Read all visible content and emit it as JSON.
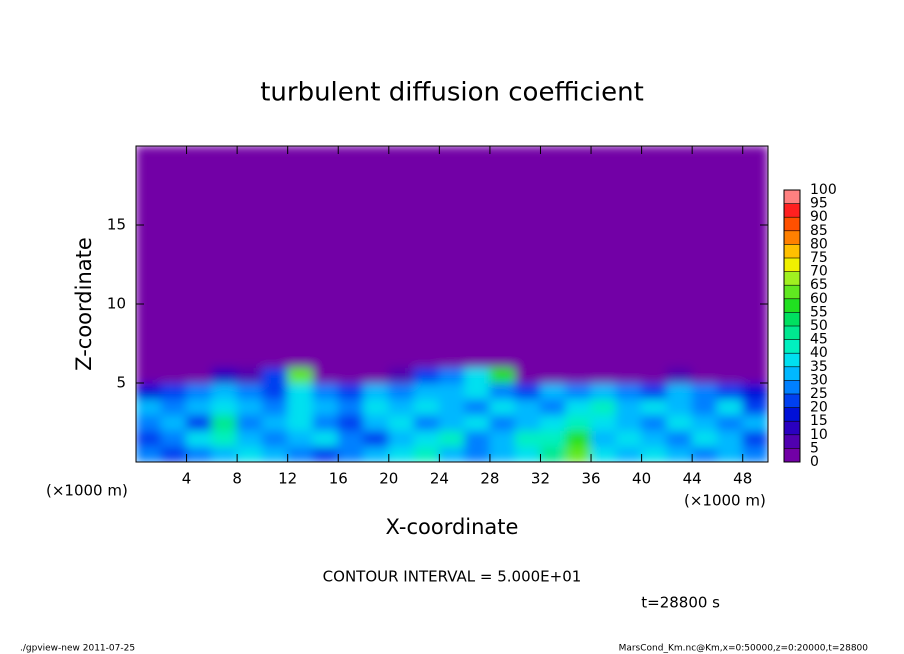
{
  "chart_data": {
    "type": "heatmap",
    "title": "turbulent diffusion coefficient",
    "xlabel": "X-coordinate",
    "ylabel": "Z-coordinate",
    "xunit": "(×1000 m)",
    "yunit": "(×1000 m)",
    "contour_note": "CONTOUR INTERVAL = 5.000E+01",
    "time_label": "t=28800 s",
    "footer_left": "./gpview-new  2011-07-25",
    "footer_right": "MarsCond_Km.nc@Km,x=0:50000,z=0:20000,t=28800",
    "xlim": [
      0,
      50
    ],
    "ylim": [
      0,
      20
    ],
    "xticks": [
      4,
      8,
      12,
      16,
      20,
      24,
      28,
      32,
      36,
      40,
      44,
      48
    ],
    "yticks": [
      5,
      10,
      15
    ],
    "xbins": [
      0,
      2,
      4,
      6,
      8,
      10,
      12,
      14,
      16,
      18,
      20,
      22,
      24,
      26,
      28,
      30,
      32,
      34,
      36,
      38,
      40,
      42,
      44,
      46,
      48,
      50
    ],
    "ybins": [
      0,
      1,
      2,
      3,
      4,
      5,
      6,
      20
    ],
    "values": [
      [
        25,
        20,
        25,
        30,
        35,
        30,
        25,
        20,
        25,
        30,
        35,
        40,
        30,
        25,
        30,
        35,
        45,
        60,
        35,
        30,
        35,
        30,
        25,
        30,
        25
      ],
      [
        20,
        25,
        35,
        40,
        30,
        25,
        30,
        35,
        25,
        20,
        30,
        35,
        40,
        25,
        30,
        40,
        40,
        55,
        30,
        35,
        30,
        25,
        35,
        30,
        20
      ],
      [
        25,
        30,
        20,
        45,
        25,
        30,
        35,
        25,
        20,
        30,
        35,
        25,
        30,
        35,
        25,
        30,
        35,
        40,
        35,
        30,
        25,
        35,
        30,
        25,
        30
      ],
      [
        30,
        25,
        30,
        35,
        30,
        25,
        35,
        30,
        25,
        35,
        30,
        35,
        30,
        25,
        35,
        30,
        25,
        35,
        40,
        30,
        35,
        30,
        25,
        35,
        20
      ],
      [
        15,
        20,
        25,
        30,
        25,
        20,
        35,
        25,
        20,
        30,
        25,
        30,
        30,
        35,
        25,
        20,
        30,
        25,
        30,
        25,
        20,
        30,
        25,
        20,
        15
      ],
      [
        0,
        0,
        0,
        10,
        5,
        20,
        60,
        0,
        0,
        0,
        5,
        20,
        25,
        35,
        55,
        0,
        0,
        0,
        0,
        0,
        0,
        5,
        0,
        0,
        0
      ],
      [
        0,
        0,
        0,
        0,
        0,
        0,
        0,
        0,
        0,
        0,
        0,
        0,
        0,
        0,
        0,
        0,
        0,
        0,
        0,
        0,
        0,
        0,
        0,
        0,
        0
      ]
    ],
    "levels": [
      0,
      5,
      10,
      15,
      20,
      25,
      30,
      35,
      40,
      45,
      50,
      55,
      60,
      65,
      70,
      75,
      80,
      85,
      90,
      95,
      100
    ],
    "colors": [
      "#7200a6",
      "#5000b0",
      "#2a00c0",
      "#0010d8",
      "#0040f0",
      "#0080ff",
      "#00b8ff",
      "#00e0f0",
      "#00f0c0",
      "#00e890",
      "#00e060",
      "#20e020",
      "#60e820",
      "#a0f020",
      "#f0f000",
      "#ffc000",
      "#ff8000",
      "#ff5000",
      "#ff2020",
      "#ff8080"
    ]
  }
}
